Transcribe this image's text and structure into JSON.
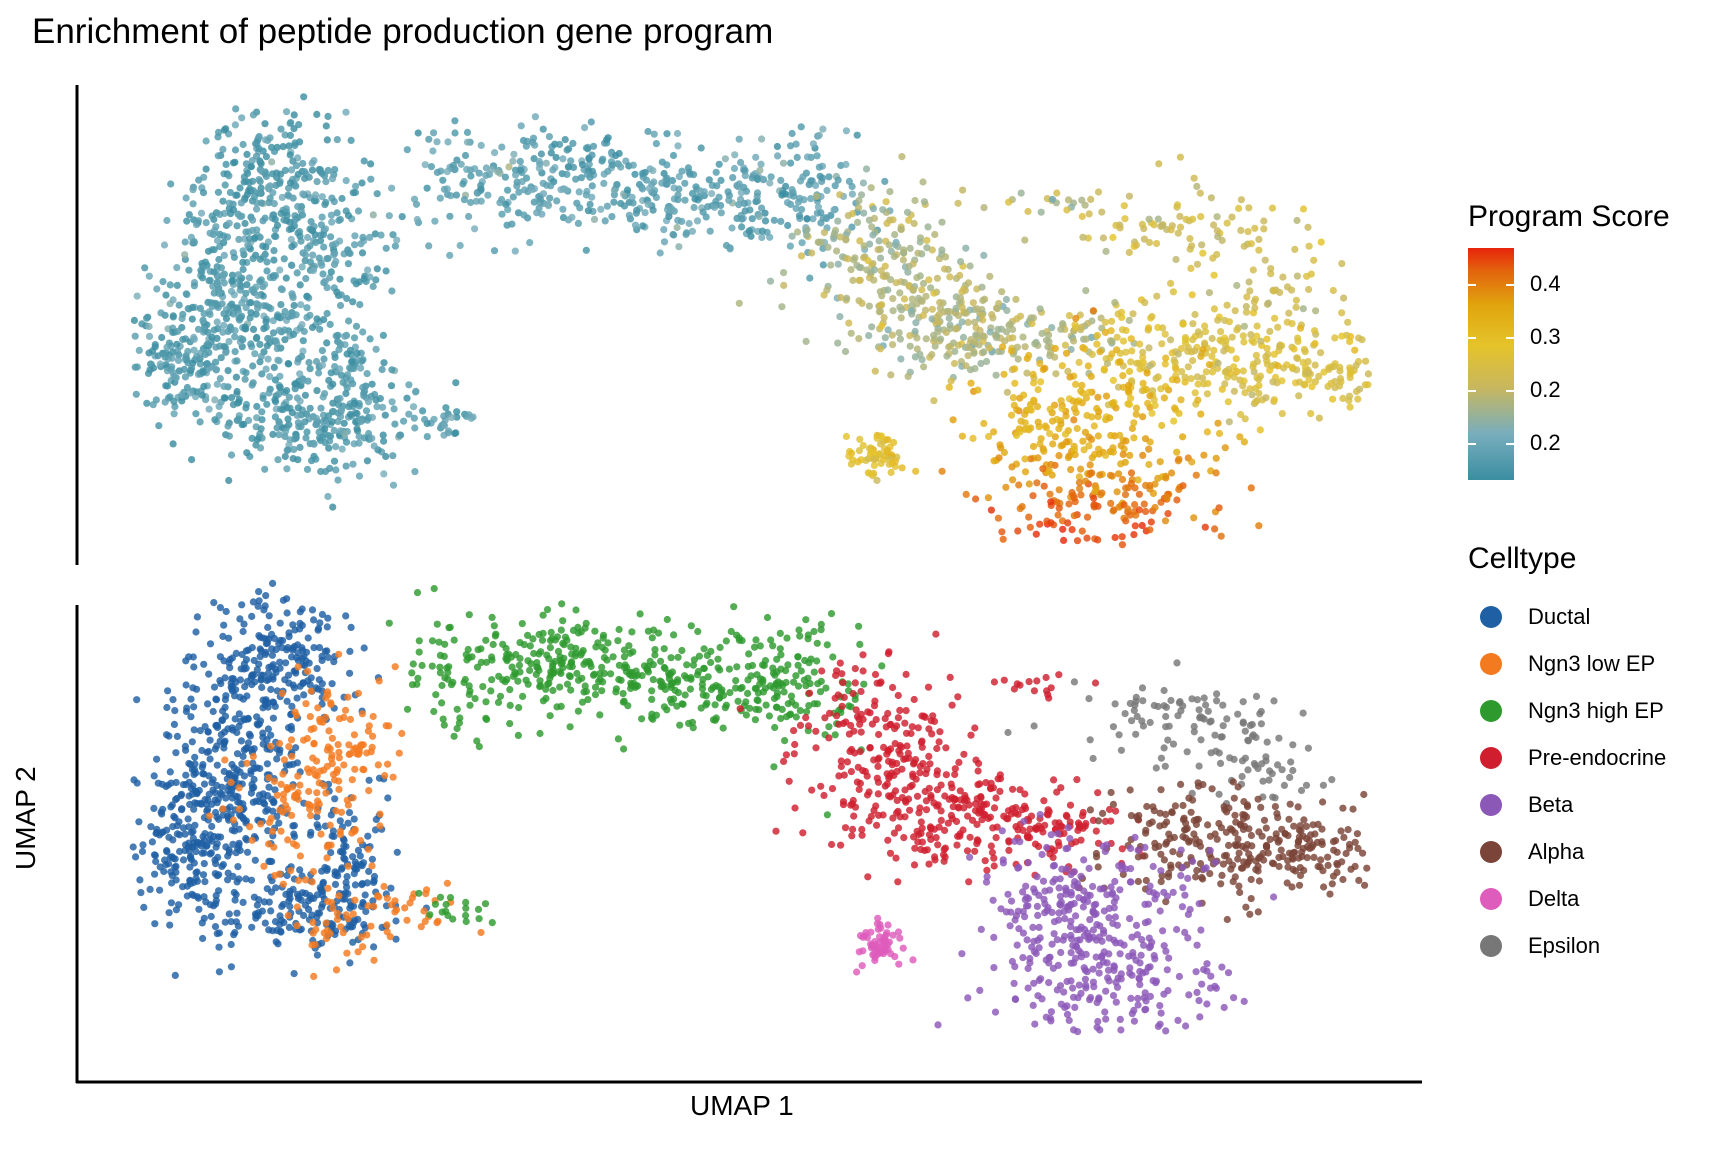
{
  "title": "Enrichment of peptide production gene program",
  "xlabel": "UMAP 1",
  "ylabel": "UMAP 2",
  "legend_score": {
    "title": "Program Score",
    "ticks": [
      "0.4",
      "0.3",
      "0.2",
      "0.2"
    ],
    "colors": [
      "#3a8ea1",
      "#79aebd",
      "#c8b75e",
      "#e5c32a",
      "#e0a60e",
      "#e3650d",
      "#e8240c"
    ]
  },
  "legend_celltype": {
    "title": "Celltype",
    "items": [
      {
        "label": "Ductal",
        "color": "#1f5fa3"
      },
      {
        "label": "Ngn3 low EP",
        "color": "#f47a20"
      },
      {
        "label": "Ngn3 high EP",
        "color": "#2e9a2e"
      },
      {
        "label": "Pre-endocrine",
        "color": "#cf1f2e"
      },
      {
        "label": "Beta",
        "color": "#8b58b8"
      },
      {
        "label": "Alpha",
        "color": "#7b4438"
      },
      {
        "label": "Delta",
        "color": "#de5cbc"
      },
      {
        "label": "Epsilon",
        "color": "#777777"
      }
    ]
  },
  "chart_data": [
    {
      "type": "scatter",
      "panel": "top",
      "color_by": "Program Score",
      "axis_ticks_shown": false,
      "grid": false,
      "regions": [
        {
          "celltype": "Ductal",
          "score": 0.14
        },
        {
          "celltype": "Ngn3 low EP",
          "score": 0.14
        },
        {
          "celltype": "Ngn3 high EP",
          "score": 0.15
        },
        {
          "celltype": "Pre-endocrine",
          "score": 0.22
        },
        {
          "celltype": "Beta",
          "score": 0.33
        },
        {
          "celltype": "Alpha",
          "score": 0.27
        },
        {
          "celltype": "Delta",
          "score": 0.29
        },
        {
          "celltype": "Epsilon",
          "score": 0.25
        }
      ]
    },
    {
      "type": "scatter",
      "panel": "bottom",
      "color_by": "Celltype",
      "axis_ticks_shown": false,
      "grid": false
    }
  ]
}
